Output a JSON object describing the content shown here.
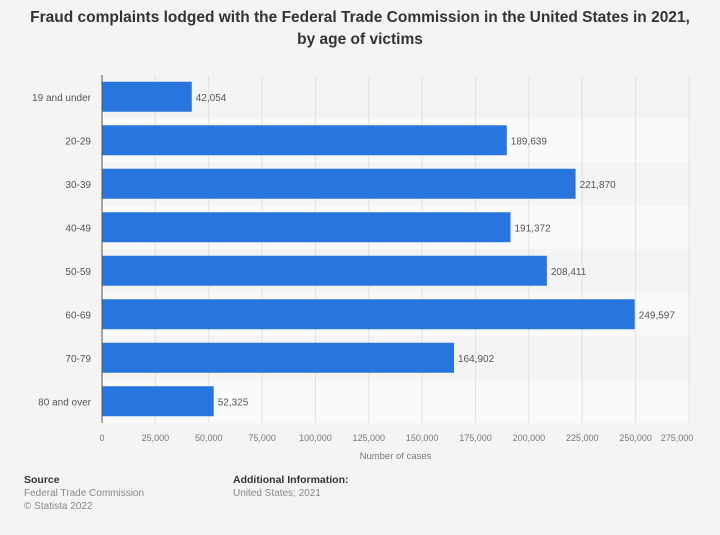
{
  "chart_data": {
    "type": "bar",
    "orientation": "horizontal",
    "title": "Fraud complaints lodged with the Federal Trade Commission in the United States in 2021, by age of victims",
    "categories": [
      "19 and under",
      "20-29",
      "30-39",
      "40-49",
      "50-59",
      "60-69",
      "70-79",
      "80 and over"
    ],
    "values": [
      42054,
      189639,
      221870,
      191372,
      208411,
      249597,
      164902,
      52325
    ],
    "value_labels": [
      "42,054",
      "189,639",
      "221,870",
      "191,372",
      "208,411",
      "249,597",
      "164,902",
      "52,325"
    ],
    "xlabel": "Number of cases",
    "ylabel": "",
    "xlim": [
      0,
      275000
    ],
    "xticks": [
      0,
      25000,
      50000,
      75000,
      100000,
      125000,
      150000,
      175000,
      200000,
      225000,
      250000,
      275000
    ],
    "xtick_labels": [
      "0",
      "25,000",
      "50,000",
      "75,000",
      "100,000",
      "125,000",
      "150,000",
      "175,000",
      "200,000",
      "225,000",
      "250,000",
      "275,000"
    ],
    "grid": true,
    "bar_color": "#2876dd"
  },
  "footer": {
    "source_heading": "Source",
    "source_lines": [
      "Federal Trade Commission",
      "© Statista 2022"
    ],
    "info_heading": "Additional Information:",
    "info_lines": [
      "United States; 2021"
    ]
  }
}
